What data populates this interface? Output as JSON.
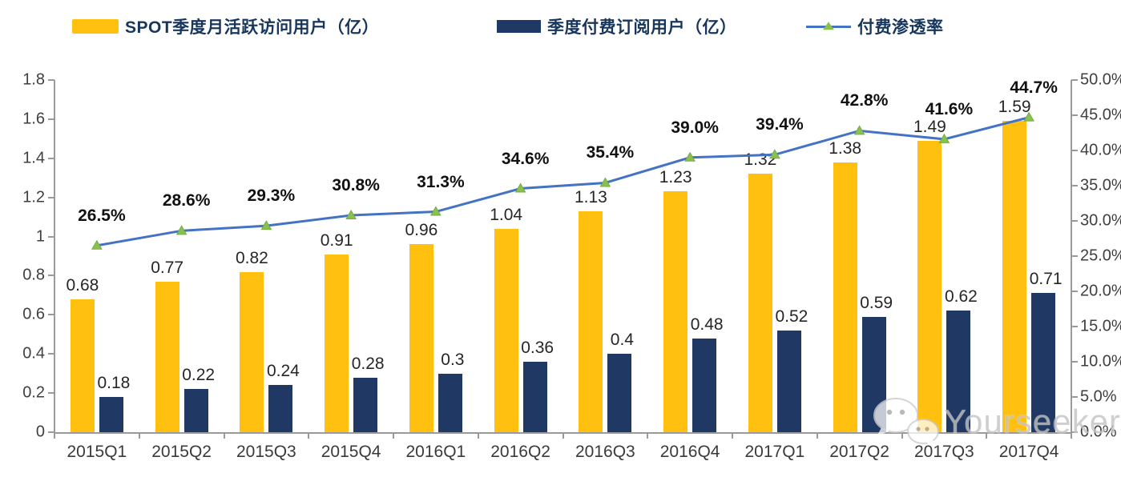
{
  "watermark": {
    "text": "Yourseeker",
    "icon": "wechat-icon"
  },
  "colors": {
    "mau_bar": "#FFC010",
    "subs_bar": "#1F3864",
    "line": "#4472C4",
    "marker_fill": "#8DBF4D",
    "marker_stroke": "#70AD47",
    "axis": "#9A9A9A",
    "legend_text": "#17365D"
  },
  "chart_data": {
    "type": "bar+line combo",
    "title": "",
    "grid": false,
    "legend_position": "top",
    "categories": [
      "2015Q1",
      "2015Q2",
      "2015Q3",
      "2015Q4",
      "2016Q1",
      "2016Q2",
      "2016Q3",
      "2016Q4",
      "2017Q1",
      "2017Q2",
      "2017Q3",
      "2017Q4"
    ],
    "series": [
      {
        "name": "SPOT季度月活跃访问用户（亿）",
        "type": "bar",
        "axis": "left",
        "color": "#FFC010",
        "values": [
          0.68,
          0.77,
          0.82,
          0.91,
          0.96,
          1.04,
          1.13,
          1.23,
          1.32,
          1.38,
          1.49,
          1.59
        ],
        "labels": [
          "0.68",
          "0.77",
          "0.82",
          "0.91",
          "0.96",
          "1.04",
          "1.13",
          "1.23",
          "1.32",
          "1.38",
          "1.49",
          "1.59"
        ]
      },
      {
        "name": "季度付费订阅用户（亿）",
        "type": "bar",
        "axis": "left",
        "color": "#1F3864",
        "values": [
          0.18,
          0.22,
          0.24,
          0.28,
          0.3,
          0.36,
          0.4,
          0.48,
          0.52,
          0.59,
          0.62,
          0.71
        ],
        "labels": [
          "0.18",
          "0.22",
          "0.24",
          "0.28",
          "0.3",
          "0.36",
          "0.4",
          "0.48",
          "0.52",
          "0.59",
          "0.62",
          "0.71"
        ]
      },
      {
        "name": "付费渗透率",
        "type": "line",
        "axis": "right",
        "color": "#4472C4",
        "values": [
          26.5,
          28.6,
          29.3,
          30.8,
          31.3,
          34.6,
          35.4,
          39.0,
          39.4,
          42.8,
          41.6,
          44.7
        ],
        "labels": [
          "26.5%",
          "28.6%",
          "29.3%",
          "30.8%",
          "31.3%",
          "34.6%",
          "35.4%",
          "39.0%",
          "39.4%",
          "42.8%",
          "41.6%",
          "44.7%"
        ]
      }
    ],
    "left_axis": {
      "min": 0,
      "max": 1.8,
      "ticks": [
        "0",
        "0.2",
        "0.4",
        "0.6",
        "0.8",
        "1",
        "1.2",
        "1.4",
        "1.6",
        "1.8"
      ]
    },
    "right_axis": {
      "min": 0,
      "max": 50,
      "ticks": [
        "0.0%",
        "5.0%",
        "10.0%",
        "15.0%",
        "20.0%",
        "25.0%",
        "30.0%",
        "35.0%",
        "40.0%",
        "45.0%",
        "50.0%"
      ]
    }
  }
}
